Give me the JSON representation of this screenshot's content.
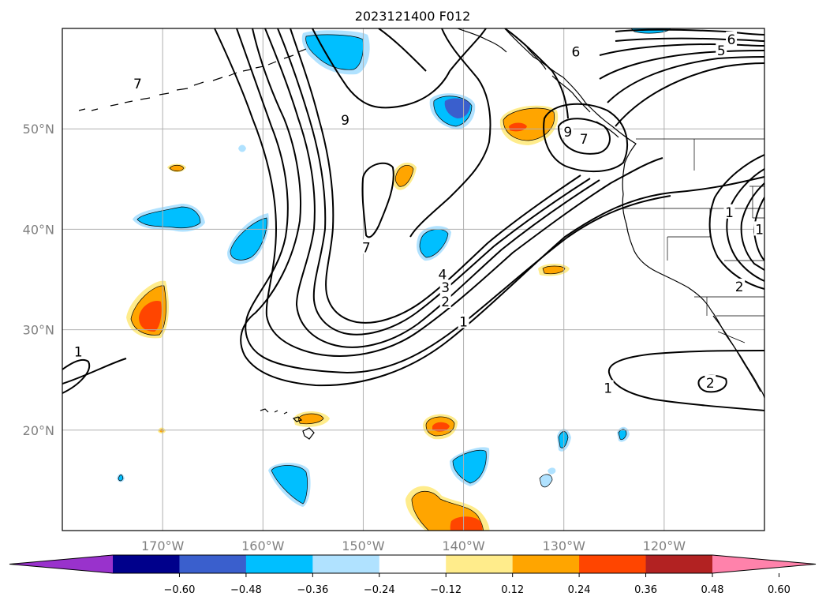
{
  "title": "2023121400 F012",
  "map": {
    "lon_range": [
      -180,
      -110
    ],
    "lat_range": [
      10,
      60
    ],
    "lon_ticks": [
      {
        "lon": -170,
        "label": "170°W"
      },
      {
        "lon": -160,
        "label": "160°W"
      },
      {
        "lon": -150,
        "label": "150°W"
      },
      {
        "lon": -140,
        "label": "140°W"
      },
      {
        "lon": -130,
        "label": "130°W"
      },
      {
        "lon": -120,
        "label": "120°W"
      }
    ],
    "lat_ticks": [
      {
        "lat": 20,
        "label": "20°N"
      },
      {
        "lat": 30,
        "label": "30°N"
      },
      {
        "lat": 40,
        "label": "40°N"
      },
      {
        "lat": 50,
        "label": "50°N"
      }
    ],
    "grid": true,
    "tick_color": "#808080"
  },
  "contour_labels": [
    {
      "text": "7",
      "lon": -172.5,
      "lat": 54.5
    },
    {
      "text": "9",
      "lon": -151.8,
      "lat": 50.9
    },
    {
      "text": "6",
      "lon": -128.8,
      "lat": 57.7
    },
    {
      "text": "6",
      "lon": -113.3,
      "lat": 58.9
    },
    {
      "text": "5",
      "lon": -114.3,
      "lat": 57.8
    },
    {
      "text": "9",
      "lon": -129.6,
      "lat": 49.7
    },
    {
      "text": "7",
      "lon": -128.0,
      "lat": 49.0
    },
    {
      "text": "7",
      "lon": -149.7,
      "lat": 38.2
    },
    {
      "text": "4",
      "lon": -142.1,
      "lat": 35.5
    },
    {
      "text": "3",
      "lon": -141.8,
      "lat": 34.2
    },
    {
      "text": "2",
      "lon": -141.8,
      "lat": 32.8
    },
    {
      "text": "1",
      "lon": -140.0,
      "lat": 30.8
    },
    {
      "text": "1",
      "lon": -113.5,
      "lat": 41.7
    },
    {
      "text": "1",
      "lon": -110.5,
      "lat": 40.0
    },
    {
      "text": "2",
      "lon": -112.5,
      "lat": 34.3
    },
    {
      "text": "1",
      "lon": -178.4,
      "lat": 27.8
    },
    {
      "text": "1",
      "lon": -125.6,
      "lat": 24.2
    },
    {
      "text": "2",
      "lon": -115.4,
      "lat": 24.7
    }
  ],
  "colorbar": {
    "ticks": [
      "−0.60",
      "−0.48",
      "−0.36",
      "−0.24",
      "−0.12",
      "0.12",
      "0.24",
      "0.36",
      "0.48",
      "0.60"
    ],
    "colors": [
      "#9932cc",
      "#00008b",
      "#3a5fcd",
      "#00bfff",
      "#b0e2ff",
      "#ffffff",
      "#ffec8b",
      "#ffa500",
      "#ff4500",
      "#b22222",
      "#ff82ab"
    ]
  },
  "palette": {
    "neg1": "#b0e2ff",
    "neg2": "#00bfff",
    "neg3": "#3a5fcd",
    "pos1": "#ffec8b",
    "pos2": "#ffa500",
    "pos3": "#ff4500"
  }
}
